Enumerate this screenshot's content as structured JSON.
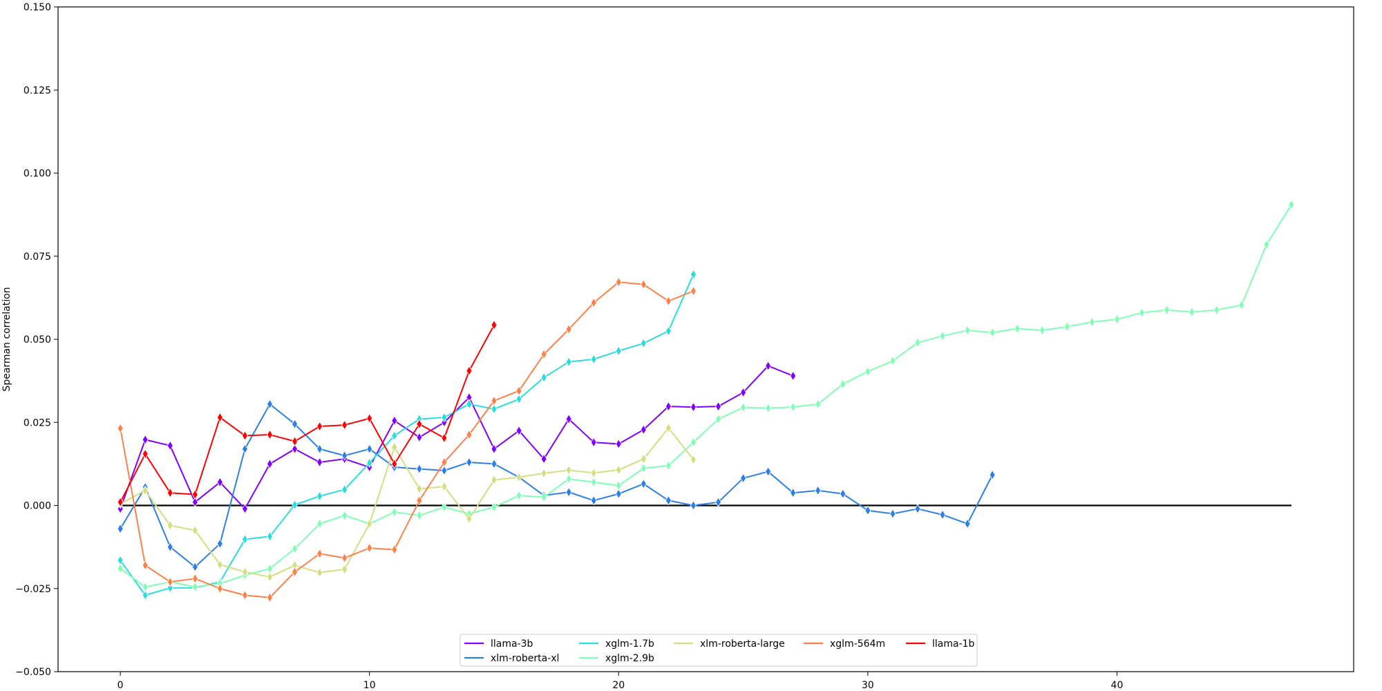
{
  "chart_data": {
    "type": "line",
    "title": "",
    "xlabel": "",
    "ylabel": "Spearman correlation",
    "xlim": [
      -2.5,
      49.5
    ],
    "ylim": [
      -0.05,
      0.15
    ],
    "xticks": [
      0,
      10,
      20,
      30,
      40
    ],
    "xtick_labels": [
      "0",
      "10",
      "20",
      "30",
      "40"
    ],
    "yticks": [
      -0.05,
      -0.025,
      0.0,
      0.025,
      0.05,
      0.075,
      0.1,
      0.125,
      0.15
    ],
    "ytick_labels": [
      "−0.050",
      "−0.025",
      "0.000",
      "0.025",
      "0.050",
      "0.075",
      "0.100",
      "0.125",
      "0.150"
    ],
    "baseline": {
      "y": 0.0,
      "x": [
        0,
        47
      ],
      "color": "#000000"
    },
    "grid": false,
    "legend_position": "lower-center",
    "series": [
      {
        "name": "llama-3b",
        "color": "#8000ff",
        "values": [
          -0.001,
          0.0198,
          0.018,
          0.001,
          0.007,
          -0.001,
          0.0125,
          0.017,
          0.013,
          0.014,
          0.0115,
          0.0255,
          0.0205,
          0.025,
          0.0325,
          0.017,
          0.0225,
          0.014,
          0.026,
          0.019,
          0.0185,
          0.0228,
          0.0298,
          0.0296,
          0.0298,
          0.034,
          0.042,
          0.039
        ]
      },
      {
        "name": "xlm-roberta-xl",
        "color": "#2c7fe8",
        "values": [
          -0.007,
          0.0055,
          -0.0125,
          -0.0185,
          -0.0115,
          0.017,
          0.0305,
          0.0245,
          0.017,
          0.015,
          0.017,
          0.0115,
          0.011,
          0.0105,
          0.013,
          0.0125,
          0.0085,
          0.003,
          0.004,
          0.0015,
          0.0035,
          0.0065,
          0.0015,
          0.0,
          0.001,
          0.0082,
          0.0102,
          0.0038,
          0.0045,
          0.0035,
          -0.0015,
          -0.0025,
          -0.001,
          -0.0028,
          -0.0055,
          0.0092
        ]
      },
      {
        "name": "xglm-1.7b",
        "color": "#2adddd",
        "values": [
          -0.0165,
          -0.027,
          -0.0248,
          -0.0248,
          -0.023,
          -0.0102,
          -0.0093,
          0.0002,
          0.0028,
          0.0048,
          0.0128,
          0.021,
          0.026,
          0.0265,
          0.0305,
          0.029,
          0.032,
          0.0385,
          0.0432,
          0.044,
          0.0465,
          0.0488,
          0.0525,
          0.0695
        ]
      },
      {
        "name": "xglm-2.9b",
        "color": "#80ffb4",
        "values": [
          -0.019,
          -0.0245,
          -0.023,
          -0.0245,
          -0.0235,
          -0.021,
          -0.019,
          -0.013,
          -0.0055,
          -0.003,
          -0.0055,
          -0.002,
          -0.003,
          -0.0005,
          -0.0025,
          -0.0005,
          0.003,
          0.0025,
          0.008,
          0.007,
          0.006,
          0.0112,
          0.012,
          0.019,
          0.026,
          0.0295,
          0.0293,
          0.0296,
          0.0305,
          0.0365,
          0.0403,
          0.0435,
          0.049,
          0.051,
          0.0527,
          0.052,
          0.0532,
          0.0527,
          0.0538,
          0.0552,
          0.056,
          0.058,
          0.0588,
          0.0582,
          0.0588,
          0.0603,
          0.0785,
          0.0905
        ]
      },
      {
        "name": "xlm-roberta-large",
        "color": "#d4dd80",
        "values": [
          0.0005,
          0.0045,
          -0.006,
          -0.0075,
          -0.0178,
          -0.02,
          -0.0215,
          -0.018,
          -0.0202,
          -0.0192,
          -0.0055,
          0.0175,
          0.005,
          0.0057,
          -0.004,
          0.0077,
          0.0085,
          0.0097,
          0.0106,
          0.0098,
          0.0107,
          0.014,
          0.0233,
          0.0138
        ]
      },
      {
        "name": "xglm-564m",
        "color": "#ff8047",
        "values": [
          0.0232,
          -0.018,
          -0.023,
          -0.022,
          -0.025,
          -0.027,
          -0.0277,
          -0.02,
          -0.0145,
          -0.0158,
          -0.0128,
          -0.0133,
          0.0015,
          0.013,
          0.0213,
          0.0315,
          0.0345,
          0.0455,
          0.053,
          0.061,
          0.0672,
          0.0665,
          0.0615,
          0.0645
        ]
      },
      {
        "name": "llama-1b",
        "color": "#ff0000",
        "values": [
          0.001,
          0.0155,
          0.0038,
          0.0033,
          0.0265,
          0.021,
          0.0213,
          0.0193,
          0.0238,
          0.0242,
          0.0262,
          0.0125,
          0.0245,
          0.0203,
          0.0405,
          0.0543
        ]
      }
    ],
    "legend_order": [
      "llama-3b",
      "xglm-1.7b",
      "xlm-roberta-large",
      "xglm-564m",
      "llama-1b",
      "xlm-roberta-xl",
      "xglm-2.9b"
    ]
  }
}
